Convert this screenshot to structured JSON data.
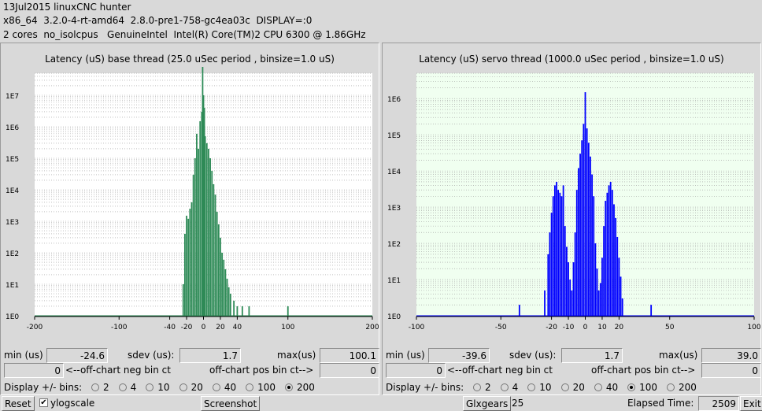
{
  "header": {
    "line1": "13Jul2015 linuxCNC hunter",
    "line2": "x86_64  3.2.0-4-rt-amd64  2.8.0-pre1-758-gc4ea03c  DISPLAY=:0",
    "line3": "2 cores  no_isolcpus   GenuineIntel  Intel(R) Core(TM)2 CPU 6300 @ 1.86GHz"
  },
  "labels": {
    "min": "min (us)",
    "sdev": "sdev (us):",
    "max": "max(us)",
    "neg": "<--off-chart neg bin ct",
    "pos": "off-chart pos bin ct-->",
    "display": "Display +/- bins:"
  },
  "base": {
    "title": "Latency (uS) base thread (25.0 uSec period , binsize=1.0 uS)",
    "min": "-24.6",
    "sdev": "1.7",
    "max": "100.1",
    "neg_ct": "0",
    "pos_ct": "0",
    "bins_options": [
      "2",
      "4",
      "10",
      "20",
      "40",
      "100",
      "200"
    ],
    "bins_selected": "200",
    "colors": {
      "bar": "#2e8b57",
      "plot_bg": "#ffffff"
    }
  },
  "servo": {
    "title": "Latency (uS) servo thread (1000.0 uSec period , binsize=1.0 uS)",
    "min": "-39.6",
    "sdev": "1.7",
    "max": "39.0",
    "neg_ct": "0",
    "pos_ct": "0",
    "bins_options": [
      "2",
      "4",
      "10",
      "20",
      "40",
      "100",
      "200"
    ],
    "bins_selected": "100",
    "colors": {
      "bar": "#0000ff",
      "plot_bg": "#f0fff0"
    }
  },
  "chart_data": [
    {
      "type": "bar",
      "title": "Latency (uS) base thread (25.0 uSec period , binsize=1.0 uS)",
      "yscale": "log",
      "ytick_labels": [
        "1E0",
        "1E1",
        "1E2",
        "1E3",
        "1E4",
        "1E5",
        "1E6",
        "1E7"
      ],
      "xtick_labels": [
        "-200",
        "-100",
        "-40",
        "-20",
        "0",
        "20",
        "40",
        "100",
        "200"
      ],
      "xlim": [
        -200,
        200
      ],
      "grid": true,
      "x": [
        -24,
        -22,
        -20,
        -18,
        -16,
        -14,
        -12,
        -10,
        -8,
        -6,
        -4,
        -2,
        -1,
        0,
        1,
        2,
        4,
        6,
        8,
        10,
        12,
        14,
        16,
        18,
        20,
        22,
        24,
        26,
        28,
        30,
        32,
        36,
        40,
        46,
        54,
        100
      ],
      "values": [
        10,
        400,
        1500,
        1200,
        2500,
        4000,
        30000,
        100000,
        600000,
        200000,
        1500000,
        3000000,
        80000000,
        10000000,
        4000000,
        500000,
        300000,
        200000,
        100000,
        40000,
        15000,
        7000,
        2000,
        800,
        300,
        100,
        60,
        30,
        15,
        8,
        5,
        3,
        2,
        2,
        2,
        2
      ]
    },
    {
      "type": "bar",
      "title": "Latency (uS) servo thread (1000.0 uSec period , binsize=1.0 uS)",
      "yscale": "log",
      "ytick_labels": [
        "1E0",
        "1E1",
        "1E2",
        "1E3",
        "1E4",
        "1E5",
        "1E6"
      ],
      "xtick_labels": [
        "-100",
        "-50",
        "-20",
        "-10",
        "0",
        "10",
        "20",
        "50",
        "100"
      ],
      "xlim": [
        -100,
        100
      ],
      "grid": true,
      "x": [
        -39,
        -24,
        -22,
        -21,
        -20,
        -19,
        -18,
        -17,
        -16,
        -15,
        -14,
        -13,
        -12,
        -11,
        -10,
        -9,
        -8,
        -7,
        -6,
        -5,
        -4,
        -3,
        -2,
        -1,
        0,
        1,
        2,
        3,
        4,
        5,
        6,
        7,
        8,
        9,
        10,
        11,
        12,
        13,
        14,
        15,
        16,
        17,
        18,
        19,
        20,
        21,
        22,
        39
      ],
      "values": [
        2,
        5,
        50,
        200,
        700,
        2000,
        4000,
        5000,
        3000,
        2500,
        2000,
        4000,
        300,
        80,
        30,
        10,
        5,
        30,
        200,
        3000,
        12000,
        30000,
        70000,
        200000,
        1500000,
        150000,
        60000,
        25000,
        8000,
        2000,
        100,
        20,
        5,
        8,
        40,
        300,
        1500,
        2500,
        4000,
        5000,
        3000,
        1200,
        500,
        150,
        40,
        12,
        3,
        2
      ]
    }
  ]
}
